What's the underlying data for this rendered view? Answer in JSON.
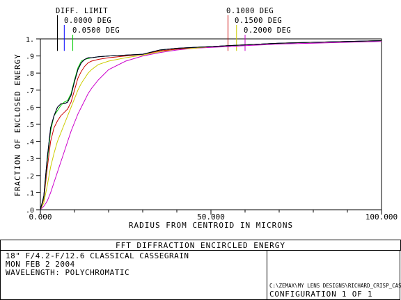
{
  "chart_data": {
    "type": "line",
    "title": "FFT DIFFRACTION ENCIRCLED ENERGY",
    "xlabel": "RADIUS FROM CENTROID IN MICRONS",
    "ylabel": "FRACTION OF ENCLOSED ENERGY",
    "xlim": [
      0,
      100
    ],
    "ylim": [
      0,
      1.0
    ],
    "x_ticks": [
      0,
      50,
      100
    ],
    "x_tick_labels": [
      "0.000",
      "50.000",
      "100.000"
    ],
    "y_ticks": [
      0,
      0.1,
      0.2,
      0.3,
      0.4,
      0.5,
      0.6,
      0.7,
      0.8,
      0.9,
      1.0
    ],
    "y_tick_labels": [
      ".0",
      ".1",
      ".2",
      ".3",
      ".4",
      ".5",
      ".6",
      ".7",
      ".8",
      ".9",
      "1."
    ],
    "grid": false,
    "series": [
      {
        "name": "DIFF. LIMIT",
        "color": "#000000",
        "marker_x": 5.0,
        "x": [
          0,
          1,
          2,
          3,
          4,
          5,
          6,
          7,
          8,
          9,
          10,
          11,
          12,
          13,
          14,
          15,
          17,
          20,
          25,
          30,
          35,
          40,
          45,
          50,
          55,
          60,
          70,
          80,
          90,
          100
        ],
        "y": [
          0,
          0.08,
          0.3,
          0.48,
          0.55,
          0.6,
          0.62,
          0.62,
          0.63,
          0.67,
          0.75,
          0.82,
          0.86,
          0.88,
          0.89,
          0.89,
          0.895,
          0.9,
          0.905,
          0.91,
          0.935,
          0.945,
          0.95,
          0.955,
          0.96,
          0.965,
          0.975,
          0.98,
          0.985,
          0.99
        ]
      },
      {
        "name": "0.0000 DEG",
        "color": "#0000ff",
        "marker_x": 7.0,
        "x": [
          0,
          1,
          2,
          3,
          4,
          5,
          6,
          7,
          8,
          9,
          10,
          11,
          12,
          13,
          14,
          15,
          17,
          20,
          25,
          30,
          35,
          40,
          45,
          50,
          55,
          60,
          70,
          80,
          90,
          100
        ],
        "y": [
          0,
          0.08,
          0.3,
          0.48,
          0.55,
          0.6,
          0.62,
          0.62,
          0.63,
          0.67,
          0.75,
          0.82,
          0.86,
          0.88,
          0.89,
          0.89,
          0.895,
          0.9,
          0.905,
          0.91,
          0.935,
          0.945,
          0.95,
          0.955,
          0.96,
          0.965,
          0.975,
          0.98,
          0.985,
          0.99
        ]
      },
      {
        "name": "0.0500 DEG",
        "color": "#00cc00",
        "marker_x": 9.5,
        "x": [
          0,
          1,
          2,
          3,
          4,
          5,
          6,
          7,
          8,
          9,
          10,
          11,
          12,
          13,
          14,
          15,
          17,
          20,
          25,
          30,
          35,
          40,
          45,
          50,
          55,
          60,
          70,
          80,
          90,
          100
        ],
        "y": [
          0,
          0.07,
          0.28,
          0.46,
          0.55,
          0.58,
          0.61,
          0.63,
          0.64,
          0.68,
          0.76,
          0.83,
          0.87,
          0.88,
          0.885,
          0.89,
          0.895,
          0.9,
          0.905,
          0.91,
          0.935,
          0.945,
          0.95,
          0.955,
          0.96,
          0.965,
          0.975,
          0.98,
          0.985,
          0.99
        ]
      },
      {
        "name": "0.1000 DEG",
        "color": "#cc0000",
        "marker_x": 55.0,
        "x": [
          0,
          1,
          2,
          3,
          4,
          5,
          6,
          7,
          8,
          9,
          10,
          11,
          12,
          13,
          14,
          15,
          17,
          20,
          25,
          30,
          35,
          40,
          45,
          50,
          55,
          60,
          70,
          80,
          90,
          100
        ],
        "y": [
          0,
          0.06,
          0.24,
          0.4,
          0.48,
          0.52,
          0.55,
          0.57,
          0.59,
          0.63,
          0.7,
          0.77,
          0.81,
          0.84,
          0.86,
          0.87,
          0.88,
          0.89,
          0.9,
          0.91,
          0.93,
          0.94,
          0.95,
          0.955,
          0.96,
          0.965,
          0.975,
          0.98,
          0.985,
          0.99
        ]
      },
      {
        "name": "0.1500 DEG",
        "color": "#cccc00",
        "marker_x": 57.5,
        "x": [
          0,
          1,
          2,
          3,
          4,
          5,
          6,
          7,
          8,
          9,
          10,
          11,
          12,
          13,
          14,
          15,
          17,
          20,
          25,
          30,
          35,
          40,
          45,
          50,
          55,
          60,
          70,
          80,
          90,
          100
        ],
        "y": [
          0,
          0.04,
          0.14,
          0.25,
          0.33,
          0.4,
          0.45,
          0.5,
          0.55,
          0.6,
          0.65,
          0.7,
          0.74,
          0.77,
          0.8,
          0.82,
          0.85,
          0.87,
          0.89,
          0.905,
          0.925,
          0.94,
          0.945,
          0.955,
          0.96,
          0.965,
          0.975,
          0.98,
          0.985,
          0.99
        ]
      },
      {
        "name": "0.2000 DEG",
        "color": "#cc00cc",
        "marker_x": 60.0,
        "x": [
          0,
          1,
          2,
          3,
          4,
          5,
          6,
          7,
          8,
          9,
          10,
          11,
          12,
          13,
          14,
          15,
          17,
          20,
          25,
          30,
          35,
          40,
          45,
          50,
          55,
          60,
          70,
          80,
          90,
          100
        ],
        "y": [
          0,
          0.02,
          0.05,
          0.1,
          0.16,
          0.22,
          0.28,
          0.34,
          0.4,
          0.46,
          0.51,
          0.56,
          0.6,
          0.64,
          0.68,
          0.71,
          0.76,
          0.82,
          0.87,
          0.9,
          0.92,
          0.935,
          0.945,
          0.95,
          0.955,
          0.96,
          0.97,
          0.975,
          0.98,
          0.985
        ]
      }
    ]
  },
  "info": {
    "line1": "18\" F/4.2-F/12.6 CLASSICAL CASSEGRAIN",
    "line2": "MON FEB 2 2004",
    "line3": "WAVELENGTH: POLYCHROMATIC",
    "file_path": "C:\\ZEMAX\\MY LENS DESIGNS\\RICHARD_CRISP_CASS.ZMX",
    "configuration": "CONFIGURATION 1 OF 1"
  }
}
